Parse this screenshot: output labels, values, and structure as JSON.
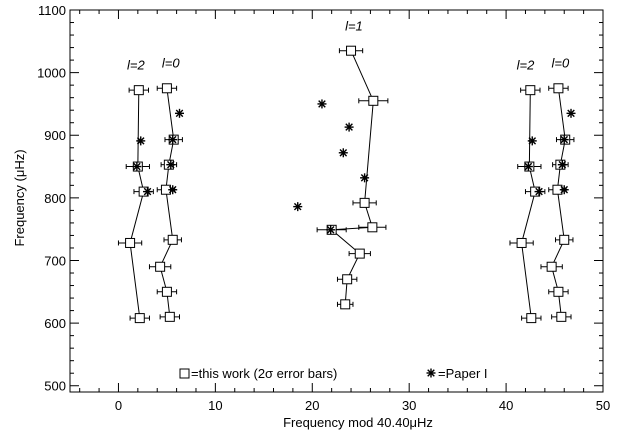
{
  "chart_data": {
    "type": "scatter",
    "title": "",
    "xlabel": "Frequency mod 40.40μHz",
    "ylabel": "Frequency (μHz)",
    "xlim": [
      -5,
      50
    ],
    "ylim": [
      490,
      1100
    ],
    "x_ticks": [
      0,
      10,
      20,
      30,
      40,
      50
    ],
    "y_ticks": [
      500,
      600,
      700,
      800,
      900,
      1000,
      1100
    ],
    "grid": false,
    "legend_position": "bottom-center",
    "legend": {
      "this_work": "=this work (2σ error bars)",
      "paper1": "=Paper I"
    },
    "degree_labels": [
      {
        "text": "l=2",
        "x": 1.8,
        "y": 1005
      },
      {
        "text": "l=0",
        "x": 5.4,
        "y": 1008
      },
      {
        "text": "l=1",
        "x": 24.3,
        "y": 1067
      },
      {
        "text": "l=2",
        "x": 42.0,
        "y": 1005
      },
      {
        "text": "l=0",
        "x": 45.6,
        "y": 1008
      }
    ],
    "series": [
      {
        "marker": "square",
        "connected": true,
        "points": [
          {
            "x": 2.2,
            "y": 608,
            "xerr": 1.0
          },
          {
            "x": 1.2,
            "y": 728,
            "xerr": 1.2
          },
          {
            "x": 2.6,
            "y": 810,
            "xerr": 1.0
          },
          {
            "x": 2.0,
            "y": 850,
            "xerr": 1.2
          },
          {
            "x": 2.1,
            "y": 972,
            "xerr": 1.0
          }
        ]
      },
      {
        "marker": "square",
        "connected": true,
        "points": [
          {
            "x": 5.3,
            "y": 610,
            "xerr": 1.0
          },
          {
            "x": 5.0,
            "y": 650,
            "xerr": 1.0
          },
          {
            "x": 4.3,
            "y": 690,
            "xerr": 1.1
          },
          {
            "x": 5.6,
            "y": 733,
            "xerr": 0.9
          },
          {
            "x": 4.9,
            "y": 813,
            "xerr": 0.9
          },
          {
            "x": 5.2,
            "y": 853,
            "xerr": 0.8
          },
          {
            "x": 5.7,
            "y": 893,
            "xerr": 0.9
          },
          {
            "x": 5.0,
            "y": 975,
            "xerr": 1.0
          }
        ]
      },
      {
        "marker": "square",
        "connected": true,
        "points": [
          {
            "x": 23.4,
            "y": 630,
            "xerr": 0.8
          },
          {
            "x": 23.6,
            "y": 670,
            "xerr": 1.0
          },
          {
            "x": 24.9,
            "y": 711,
            "xerr": 1.1
          },
          {
            "x": 22.0,
            "y": 749,
            "xerr": 1.5
          },
          {
            "x": 26.2,
            "y": 753,
            "xerr": 1.4
          },
          {
            "x": 25.4,
            "y": 792,
            "xerr": 1.2
          },
          {
            "x": 26.3,
            "y": 955,
            "xerr": 1.5
          },
          {
            "x": 24.0,
            "y": 1035,
            "xerr": 1.2
          }
        ]
      },
      {
        "marker": "square",
        "connected": true,
        "points": [
          {
            "x": 42.6,
            "y": 608,
            "xerr": 1.0
          },
          {
            "x": 41.6,
            "y": 728,
            "xerr": 1.2
          },
          {
            "x": 43.0,
            "y": 810,
            "xerr": 1.0
          },
          {
            "x": 42.4,
            "y": 850,
            "xerr": 1.2
          },
          {
            "x": 42.5,
            "y": 972,
            "xerr": 1.0
          }
        ]
      },
      {
        "marker": "square",
        "connected": true,
        "points": [
          {
            "x": 45.7,
            "y": 610,
            "xerr": 1.0
          },
          {
            "x": 45.4,
            "y": 650,
            "xerr": 1.0
          },
          {
            "x": 44.7,
            "y": 690,
            "xerr": 1.1
          },
          {
            "x": 46.0,
            "y": 733,
            "xerr": 0.9
          },
          {
            "x": 45.3,
            "y": 813,
            "xerr": 0.9
          },
          {
            "x": 45.6,
            "y": 853,
            "xerr": 0.8
          },
          {
            "x": 46.1,
            "y": 893,
            "xerr": 0.9
          },
          {
            "x": 45.4,
            "y": 975,
            "xerr": 1.0
          }
        ]
      },
      {
        "marker": "asterisk",
        "connected": false,
        "points": [
          {
            "x": 2.3,
            "y": 891
          },
          {
            "x": 1.9,
            "y": 850
          },
          {
            "x": 3.0,
            "y": 810
          },
          {
            "x": 6.3,
            "y": 935
          },
          {
            "x": 5.6,
            "y": 893
          },
          {
            "x": 5.4,
            "y": 853
          },
          {
            "x": 5.6,
            "y": 813
          },
          {
            "x": 18.5,
            "y": 786
          },
          {
            "x": 21.0,
            "y": 950
          },
          {
            "x": 23.8,
            "y": 913
          },
          {
            "x": 23.2,
            "y": 872
          },
          {
            "x": 25.4,
            "y": 832
          },
          {
            "x": 21.9,
            "y": 749
          },
          {
            "x": 42.7,
            "y": 891
          },
          {
            "x": 42.3,
            "y": 850
          },
          {
            "x": 43.4,
            "y": 810
          },
          {
            "x": 46.7,
            "y": 935
          },
          {
            "x": 46.0,
            "y": 893
          },
          {
            "x": 45.8,
            "y": 853
          },
          {
            "x": 46.0,
            "y": 813
          }
        ]
      }
    ]
  }
}
